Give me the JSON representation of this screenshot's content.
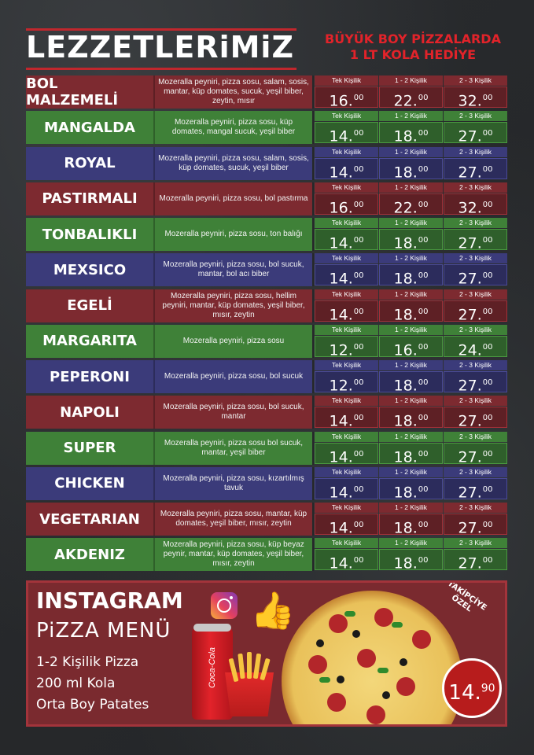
{
  "header": {
    "title": "LEZZETLERiMiZ",
    "promo_line1": "BÜYÜK BOY PİZZALARDA",
    "promo_line2": "1 LT KOLA HEDİYE"
  },
  "currency_symbol": "₺",
  "price_labels": [
    "Tek Kişilik",
    "1 - 2 Kişilik",
    "2 - 3 Kişilik"
  ],
  "pizzas": [
    {
      "name": "BOL MALZEMELİ",
      "color": "red",
      "desc": "Mozeralla peyniri, pizza sosu, salam, sosis, mantar, küp domates, sucuk, yeşil biber, zeytin, mısır",
      "prices": [
        "16.",
        "22.",
        "32."
      ]
    },
    {
      "name": "MANGALDA",
      "color": "green",
      "desc": "Mozeralla peyniri, pizza sosu, küp domates, mangal sucuk, yeşil biber",
      "prices": [
        "14.",
        "18.",
        "27."
      ]
    },
    {
      "name": "ROYAL",
      "color": "blue",
      "desc": "Mozeralla peyniri, pizza sosu, salam, sosis, küp domates, sucuk, yeşil biber",
      "prices": [
        "14.",
        "18.",
        "27."
      ]
    },
    {
      "name": "PASTIRMALI",
      "color": "red",
      "desc": "Mozeralla peyniri, pizza sosu, bol pastırma",
      "prices": [
        "16.",
        "22.",
        "32."
      ]
    },
    {
      "name": "TONBALIKLI",
      "color": "green",
      "desc": "Mozeralla peyniri, pizza sosu, ton balığı",
      "prices": [
        "14.",
        "18.",
        "27."
      ]
    },
    {
      "name": "MEXSICO",
      "color": "blue",
      "desc": "Mozeralla peyniri, pizza sosu, bol sucuk, mantar, bol acı biber",
      "prices": [
        "14.",
        "18.",
        "27."
      ]
    },
    {
      "name": "EGELİ",
      "color": "red",
      "desc": "Mozeralla peyniri, pizza sosu, hellim peyniri, mantar, küp domates, yeşil biber, mısır, zeytin",
      "prices": [
        "14.",
        "18.",
        "27."
      ]
    },
    {
      "name": "MARGARITA",
      "color": "green",
      "desc": "Mozeralla peyniri, pizza sosu",
      "prices": [
        "12.",
        "16.",
        "24."
      ]
    },
    {
      "name": "PEPERONI",
      "color": "blue",
      "desc": "Mozeralla peyniri, pizza sosu, bol sucuk",
      "prices": [
        "12.",
        "18.",
        "27."
      ]
    },
    {
      "name": "NAPOLI",
      "color": "red",
      "desc": "Mozeralla peyniri, pizza sosu, bol sucuk, mantar",
      "prices": [
        "14.",
        "18.",
        "27."
      ]
    },
    {
      "name": "SUPER",
      "color": "green",
      "desc": "Mozeralla peyniri, pizza sosu bol sucuk, mantar, yeşil biber",
      "prices": [
        "14.",
        "18.",
        "27."
      ]
    },
    {
      "name": "CHICKEN",
      "color": "blue",
      "desc": "Mozeralla peyniri, pizza sosu, kızartılmış tavuk",
      "prices": [
        "14.",
        "18.",
        "27."
      ]
    },
    {
      "name": "VEGETARIAN",
      "color": "red",
      "desc": "Mozeralla peyniri, pizza sosu, mantar, küp domates, yeşil biber, mısır, zeytin",
      "prices": [
        "14.",
        "18.",
        "27."
      ]
    },
    {
      "name": "AKDENIZ",
      "color": "green",
      "desc": "Mozeralla peyniri, pizza sosu, küp beyaz peynir, mantar, küp domates, yeşil biber, mısır, zeytin",
      "prices": [
        "14.",
        "18.",
        "27."
      ]
    }
  ],
  "price_decimal": "00",
  "instagram": {
    "title": "INSTAGRAM",
    "subtitle": "PiZZA MENÜ",
    "items": [
      "1-2 Kişilik Pizza",
      "200 ml Kola",
      "Orta Boy Patates"
    ],
    "special_line1": "TAKİPÇİYE",
    "special_line2": "ÖZEL",
    "price_main": "14.",
    "price_decimal": "90",
    "can_label": "Coca-Cola"
  },
  "icons": [
    "instagram-icon",
    "thumbs-up-icon",
    "pizza-image",
    "cola-can-image",
    "fries-image"
  ]
}
